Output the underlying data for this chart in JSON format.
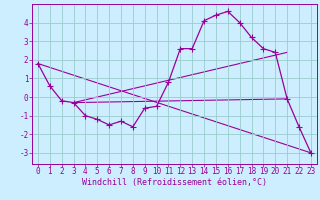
{
  "bg_color": "#cceeff",
  "line_color": "#990099",
  "grid_color": "#99cccc",
  "xlabel": "Windchill (Refroidissement éolien,°C)",
  "xlim": [
    -0.5,
    23.5
  ],
  "ylim": [
    -3.6,
    5.0
  ],
  "yticks": [
    -3,
    -2,
    -1,
    0,
    1,
    2,
    3,
    4
  ],
  "xticks": [
    0,
    1,
    2,
    3,
    4,
    5,
    6,
    7,
    8,
    9,
    10,
    11,
    12,
    13,
    14,
    15,
    16,
    17,
    18,
    19,
    20,
    21,
    22,
    23
  ],
  "curve1_x": [
    0,
    1,
    2,
    3,
    4,
    5,
    6,
    7,
    8,
    9,
    10,
    11,
    12,
    13,
    14,
    15,
    16,
    17,
    18,
    19,
    20,
    21,
    22,
    23
  ],
  "curve1_y": [
    1.8,
    0.6,
    -0.2,
    -0.3,
    -1.0,
    -1.2,
    -1.5,
    -1.3,
    -1.6,
    -0.6,
    -0.5,
    0.8,
    2.6,
    2.6,
    4.1,
    4.4,
    4.6,
    4.0,
    3.2,
    2.6,
    2.4,
    -0.1,
    -1.6,
    -3.0
  ],
  "line1_x": [
    0,
    23
  ],
  "line1_y": [
    1.8,
    -3.0
  ],
  "line2_x": [
    3,
    21
  ],
  "line2_y": [
    -0.3,
    -0.1
  ],
  "line3_x": [
    3,
    21
  ],
  "line3_y": [
    -0.3,
    2.4
  ],
  "font_size_label": 6.0,
  "font_size_tick": 5.5
}
